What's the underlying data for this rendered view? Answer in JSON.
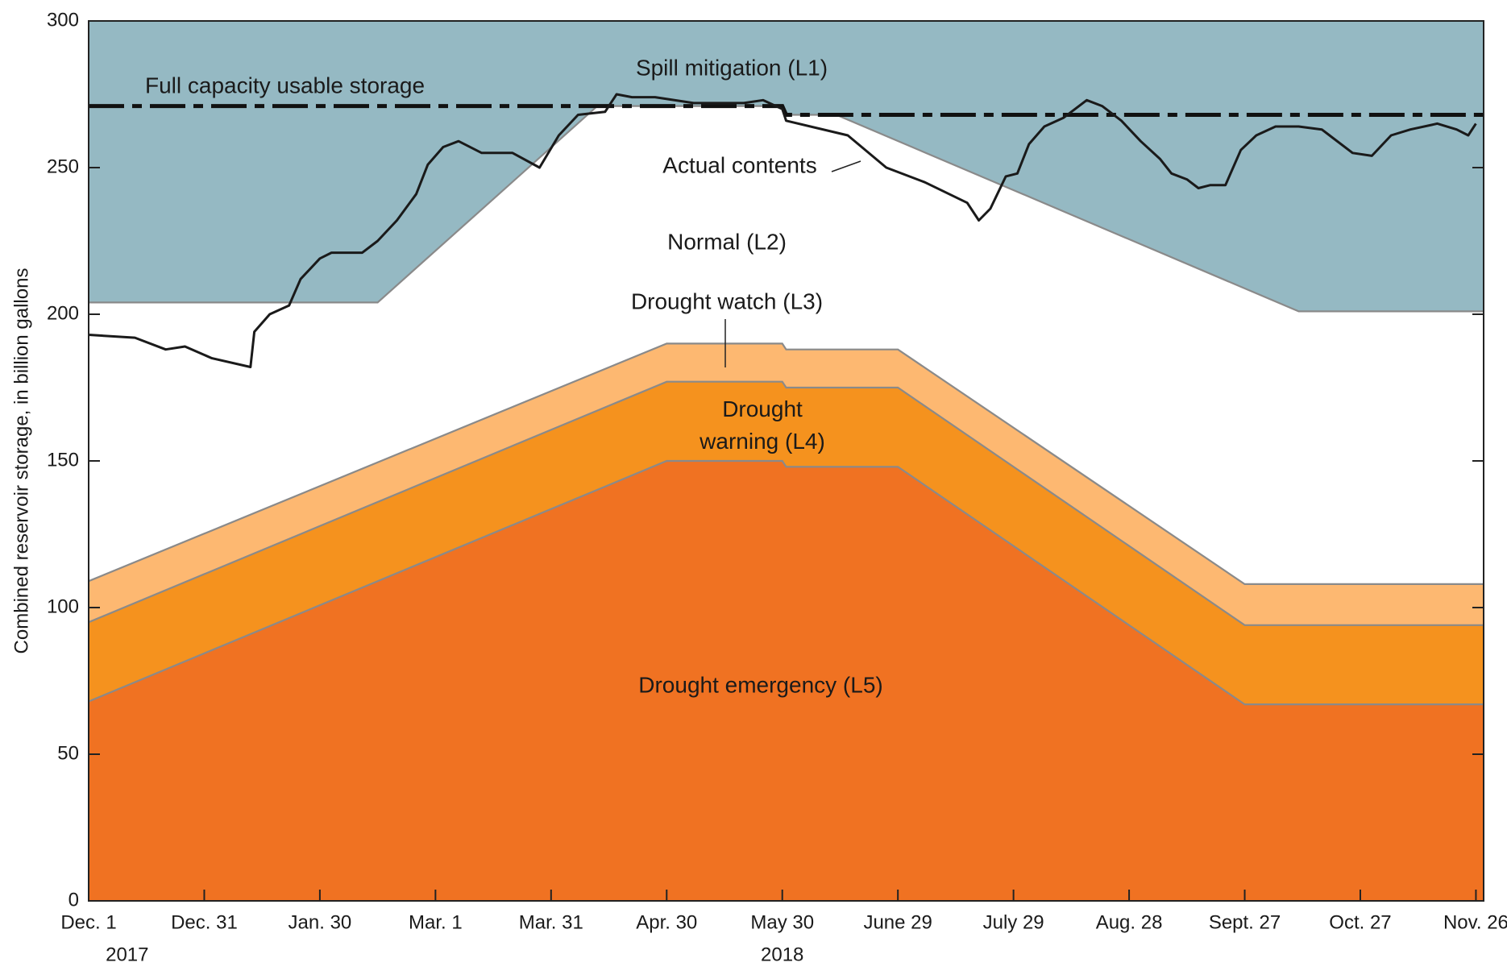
{
  "chart_data": {
    "type": "area",
    "ylabel": "Combined reservoir storage, in billion gallons",
    "xlim": [
      0,
      362
    ],
    "ylim": [
      0,
      300
    ],
    "yticks": [
      0,
      50,
      100,
      150,
      200,
      250,
      300
    ],
    "xticks": [
      {
        "value": 0,
        "label": "Dec. 1"
      },
      {
        "value": 30,
        "label": "Dec. 31"
      },
      {
        "value": 60,
        "label": "Jan. 30"
      },
      {
        "value": 90,
        "label": "Mar. 1"
      },
      {
        "value": 120,
        "label": "Mar. 31"
      },
      {
        "value": 150,
        "label": "Apr. 30"
      },
      {
        "value": 180,
        "label": "May 30"
      },
      {
        "value": 210,
        "label": "June 29"
      },
      {
        "value": 240,
        "label": "July 29"
      },
      {
        "value": 270,
        "label": "Aug. 28"
      },
      {
        "value": 300,
        "label": "Sept. 27"
      },
      {
        "value": 330,
        "label": "Oct. 27"
      },
      {
        "value": 360,
        "label": "Nov. 26"
      }
    ],
    "year_labels": [
      {
        "value": 10,
        "label": "2017"
      },
      {
        "value": 180,
        "label": "2018"
      }
    ],
    "boundary_color": "#8a8a8a",
    "series": [
      {
        "name": "Drought emergency (L5)",
        "color": "#f07222",
        "x": [
          0,
          150,
          180,
          181,
          210,
          300,
          362
        ],
        "values": [
          68,
          150,
          150,
          148,
          148,
          67,
          67
        ]
      },
      {
        "name": "Drought warning (L4)",
        "color": "#f5921e",
        "x": [
          0,
          150,
          180,
          181,
          210,
          300,
          362
        ],
        "values": [
          95,
          177,
          177,
          175,
          175,
          94,
          94
        ]
      },
      {
        "name": "Drought watch (L3)",
        "color": "#fdb871",
        "x": [
          0,
          150,
          180,
          181,
          210,
          300,
          362
        ],
        "values": [
          109,
          190,
          190,
          188,
          188,
          108,
          108
        ]
      },
      {
        "name": "Spill mitigation (L1)",
        "color": "#95b9c3",
        "x": [
          0,
          75,
          132,
          180,
          181,
          194,
          314,
          362
        ],
        "values": [
          204,
          204,
          271,
          271,
          268,
          268,
          201,
          201
        ]
      }
    ],
    "normal_label": "Normal (L2)",
    "full_capacity": {
      "name": "Full capacity usable storage",
      "color": "#111111",
      "x": [
        0,
        180,
        181,
        362
      ],
      "values": [
        271,
        271,
        268,
        268
      ]
    },
    "actual": {
      "name": "Actual contents",
      "color": "#1a1a1a",
      "x": [
        0,
        12,
        20,
        25,
        32,
        42,
        43,
        47,
        52,
        55,
        60,
        63,
        71,
        75,
        80,
        85,
        88,
        92,
        96,
        102,
        110,
        117,
        122,
        127,
        134,
        137,
        141,
        147,
        157,
        170,
        175,
        180,
        181,
        197,
        207,
        217,
        228,
        231,
        234,
        238,
        241,
        244,
        248,
        253,
        255,
        259,
        263,
        268,
        273,
        278,
        281,
        285,
        288,
        291,
        295,
        299,
        303,
        308,
        314,
        320,
        328,
        333,
        338,
        343,
        350,
        355,
        358,
        360
      ],
      "values": [
        193,
        192,
        188,
        189,
        185,
        182,
        194,
        200,
        203,
        212,
        219,
        221,
        221,
        225,
        232,
        241,
        251,
        257,
        259,
        255,
        255,
        250,
        261,
        268,
        269,
        275,
        274,
        274,
        272,
        272,
        273,
        270,
        266,
        261,
        250,
        245,
        238,
        232,
        236,
        247,
        248,
        258,
        264,
        267,
        269,
        273,
        271,
        266,
        259,
        253,
        248,
        246,
        243,
        244,
        244,
        256,
        261,
        264,
        264,
        263,
        255,
        254,
        261,
        263,
        265,
        263,
        261,
        265
      ]
    }
  }
}
